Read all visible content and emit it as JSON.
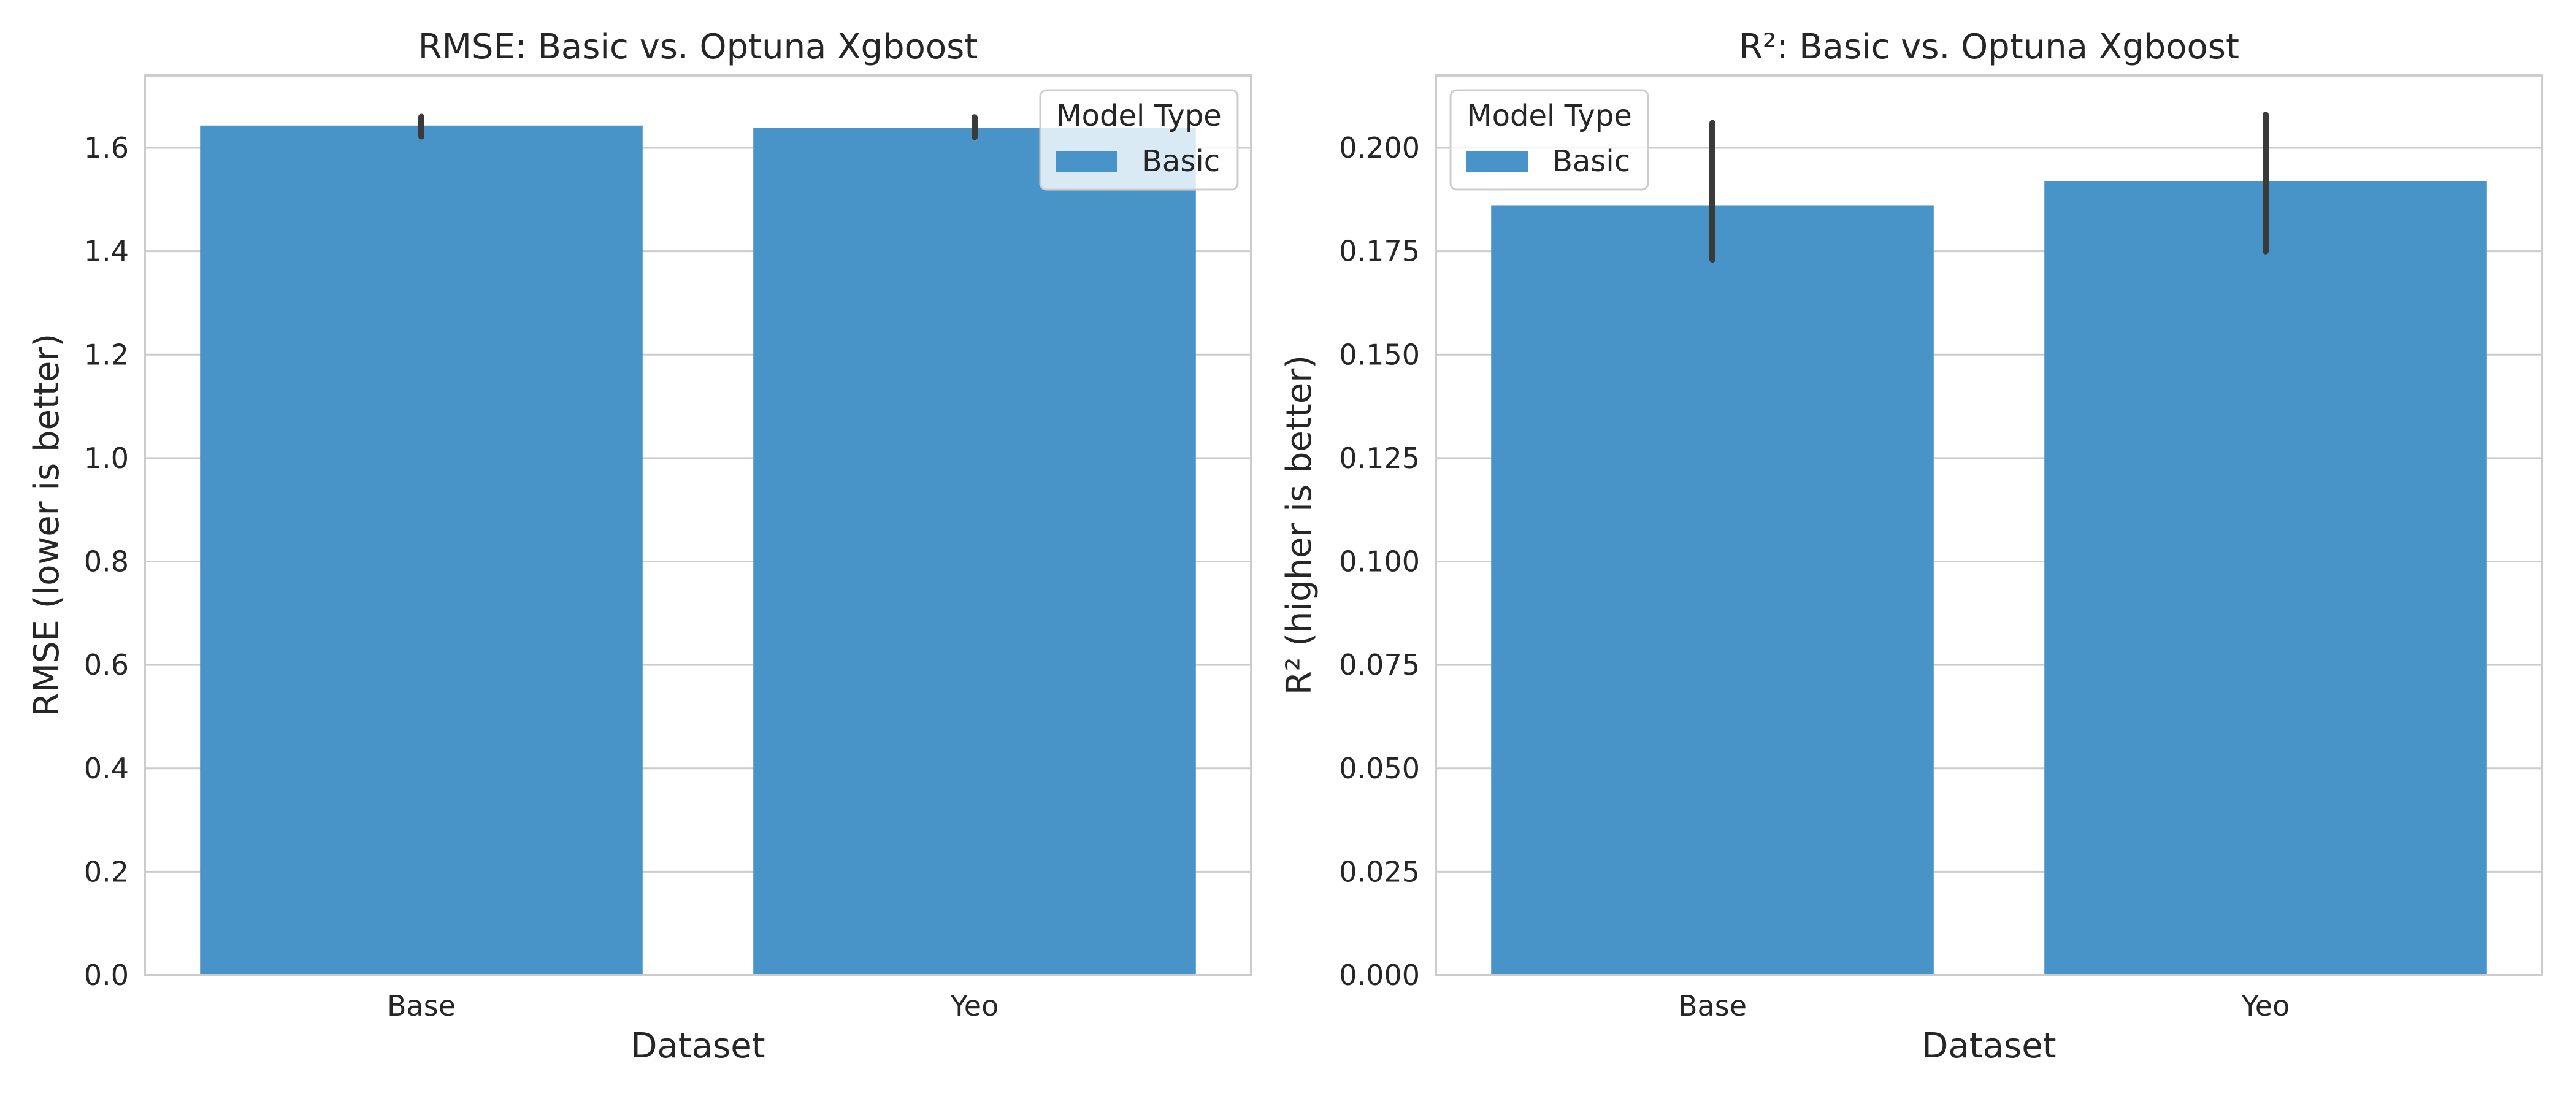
{
  "chart_data": [
    {
      "type": "bar",
      "title": "RMSE: Basic vs. Optuna Xgboost",
      "xlabel": "Dataset",
      "ylabel": "RMSE (lower is better)",
      "categories": [
        "Base",
        "Yeo"
      ],
      "ylim": [
        0,
        1.74
      ],
      "yticks": [
        0.0,
        0.2,
        0.4,
        0.6,
        0.8,
        1.0,
        1.2,
        1.4,
        1.6
      ],
      "ytick_labels": [
        "0.0",
        "0.2",
        "0.4",
        "0.6",
        "0.8",
        "1.0",
        "1.2",
        "1.4",
        "1.6"
      ],
      "grid": true,
      "series": [
        {
          "name": "Basic",
          "values": [
            1.643,
            1.639
          ],
          "error_low": [
            1.622,
            1.621
          ],
          "error_high": [
            1.66,
            1.659
          ]
        }
      ],
      "legend": {
        "title": "Model Type",
        "placement": "top-right"
      }
    },
    {
      "type": "bar",
      "title": "R²: Basic vs. Optuna Xgboost",
      "xlabel": "Dataset",
      "ylabel": "R² (higher is better)",
      "categories": [
        "Base",
        "Yeo"
      ],
      "ylim": [
        0,
        0.2175
      ],
      "yticks": [
        0.0,
        0.025,
        0.05,
        0.075,
        0.1,
        0.125,
        0.15,
        0.175,
        0.2
      ],
      "ytick_labels": [
        "0.000",
        "0.025",
        "0.050",
        "0.075",
        "0.100",
        "0.125",
        "0.150",
        "0.175",
        "0.200"
      ],
      "grid": true,
      "series": [
        {
          "name": "Basic",
          "values": [
            0.186,
            0.192
          ],
          "error_low": [
            0.173,
            0.175
          ],
          "error_high": [
            0.206,
            0.208
          ]
        }
      ],
      "legend": {
        "title": "Model Type",
        "placement": "top-left"
      }
    }
  ],
  "colors": {
    "bar": "#4894c8",
    "error": "#3a3a3a",
    "grid": "#cccccc",
    "spine": "#cccccc",
    "text": "#262626"
  }
}
